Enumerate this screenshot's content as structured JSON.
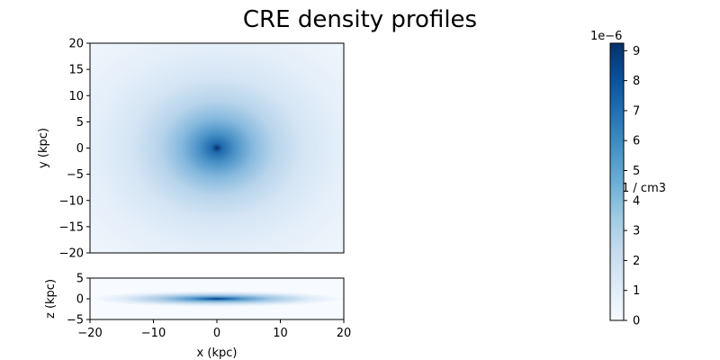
{
  "title": "CRE density profiles",
  "colors": {
    "cmap_low": "#f7fbff",
    "cmap_high": "#08306b"
  },
  "chart_data": [
    {
      "type": "heatmap",
      "panel": "xy",
      "xlabel": "",
      "ylabel": "y (kpc)",
      "xlim": [
        -20,
        20
      ],
      "ylim": [
        -20,
        20
      ],
      "xticks": [],
      "yticks": [
        -20,
        -15,
        -10,
        -5,
        0,
        5,
        10,
        15,
        20
      ],
      "ytick_labels": [
        "−20",
        "−15",
        "−10",
        "−5",
        "0",
        "5",
        "10",
        "15",
        "20"
      ],
      "peak": {
        "x": 0,
        "y": 0,
        "value": 9.2e-06
      },
      "radial_scale_kpc": 8
    },
    {
      "type": "heatmap",
      "panel": "xz",
      "xlabel": "x (kpc)",
      "ylabel": "z (kpc)",
      "xlim": [
        -20,
        20
      ],
      "ylim": [
        -5,
        5
      ],
      "xticks": [
        -20,
        -10,
        0,
        10,
        20
      ],
      "xtick_labels": [
        "−20",
        "−10",
        "0",
        "10",
        "20"
      ],
      "yticks": [
        -5,
        0,
        5
      ],
      "ytick_labels": [
        "−5",
        "0",
        "5"
      ],
      "peak": {
        "x": 0,
        "z": 0,
        "value": 9.2e-06
      },
      "radial_scale_kpc": 8,
      "vertical_scale_kpc": 0.5
    }
  ],
  "colorbar": {
    "label": "1 / cm3",
    "offset_text": "1e−6",
    "range": [
      0,
      9.25
    ],
    "ticks": [
      0,
      1,
      2,
      3,
      4,
      5,
      6,
      7,
      8,
      9
    ],
    "tick_labels": [
      "0",
      "1",
      "2",
      "3",
      "4",
      "5",
      "6",
      "7",
      "8",
      "9"
    ]
  }
}
